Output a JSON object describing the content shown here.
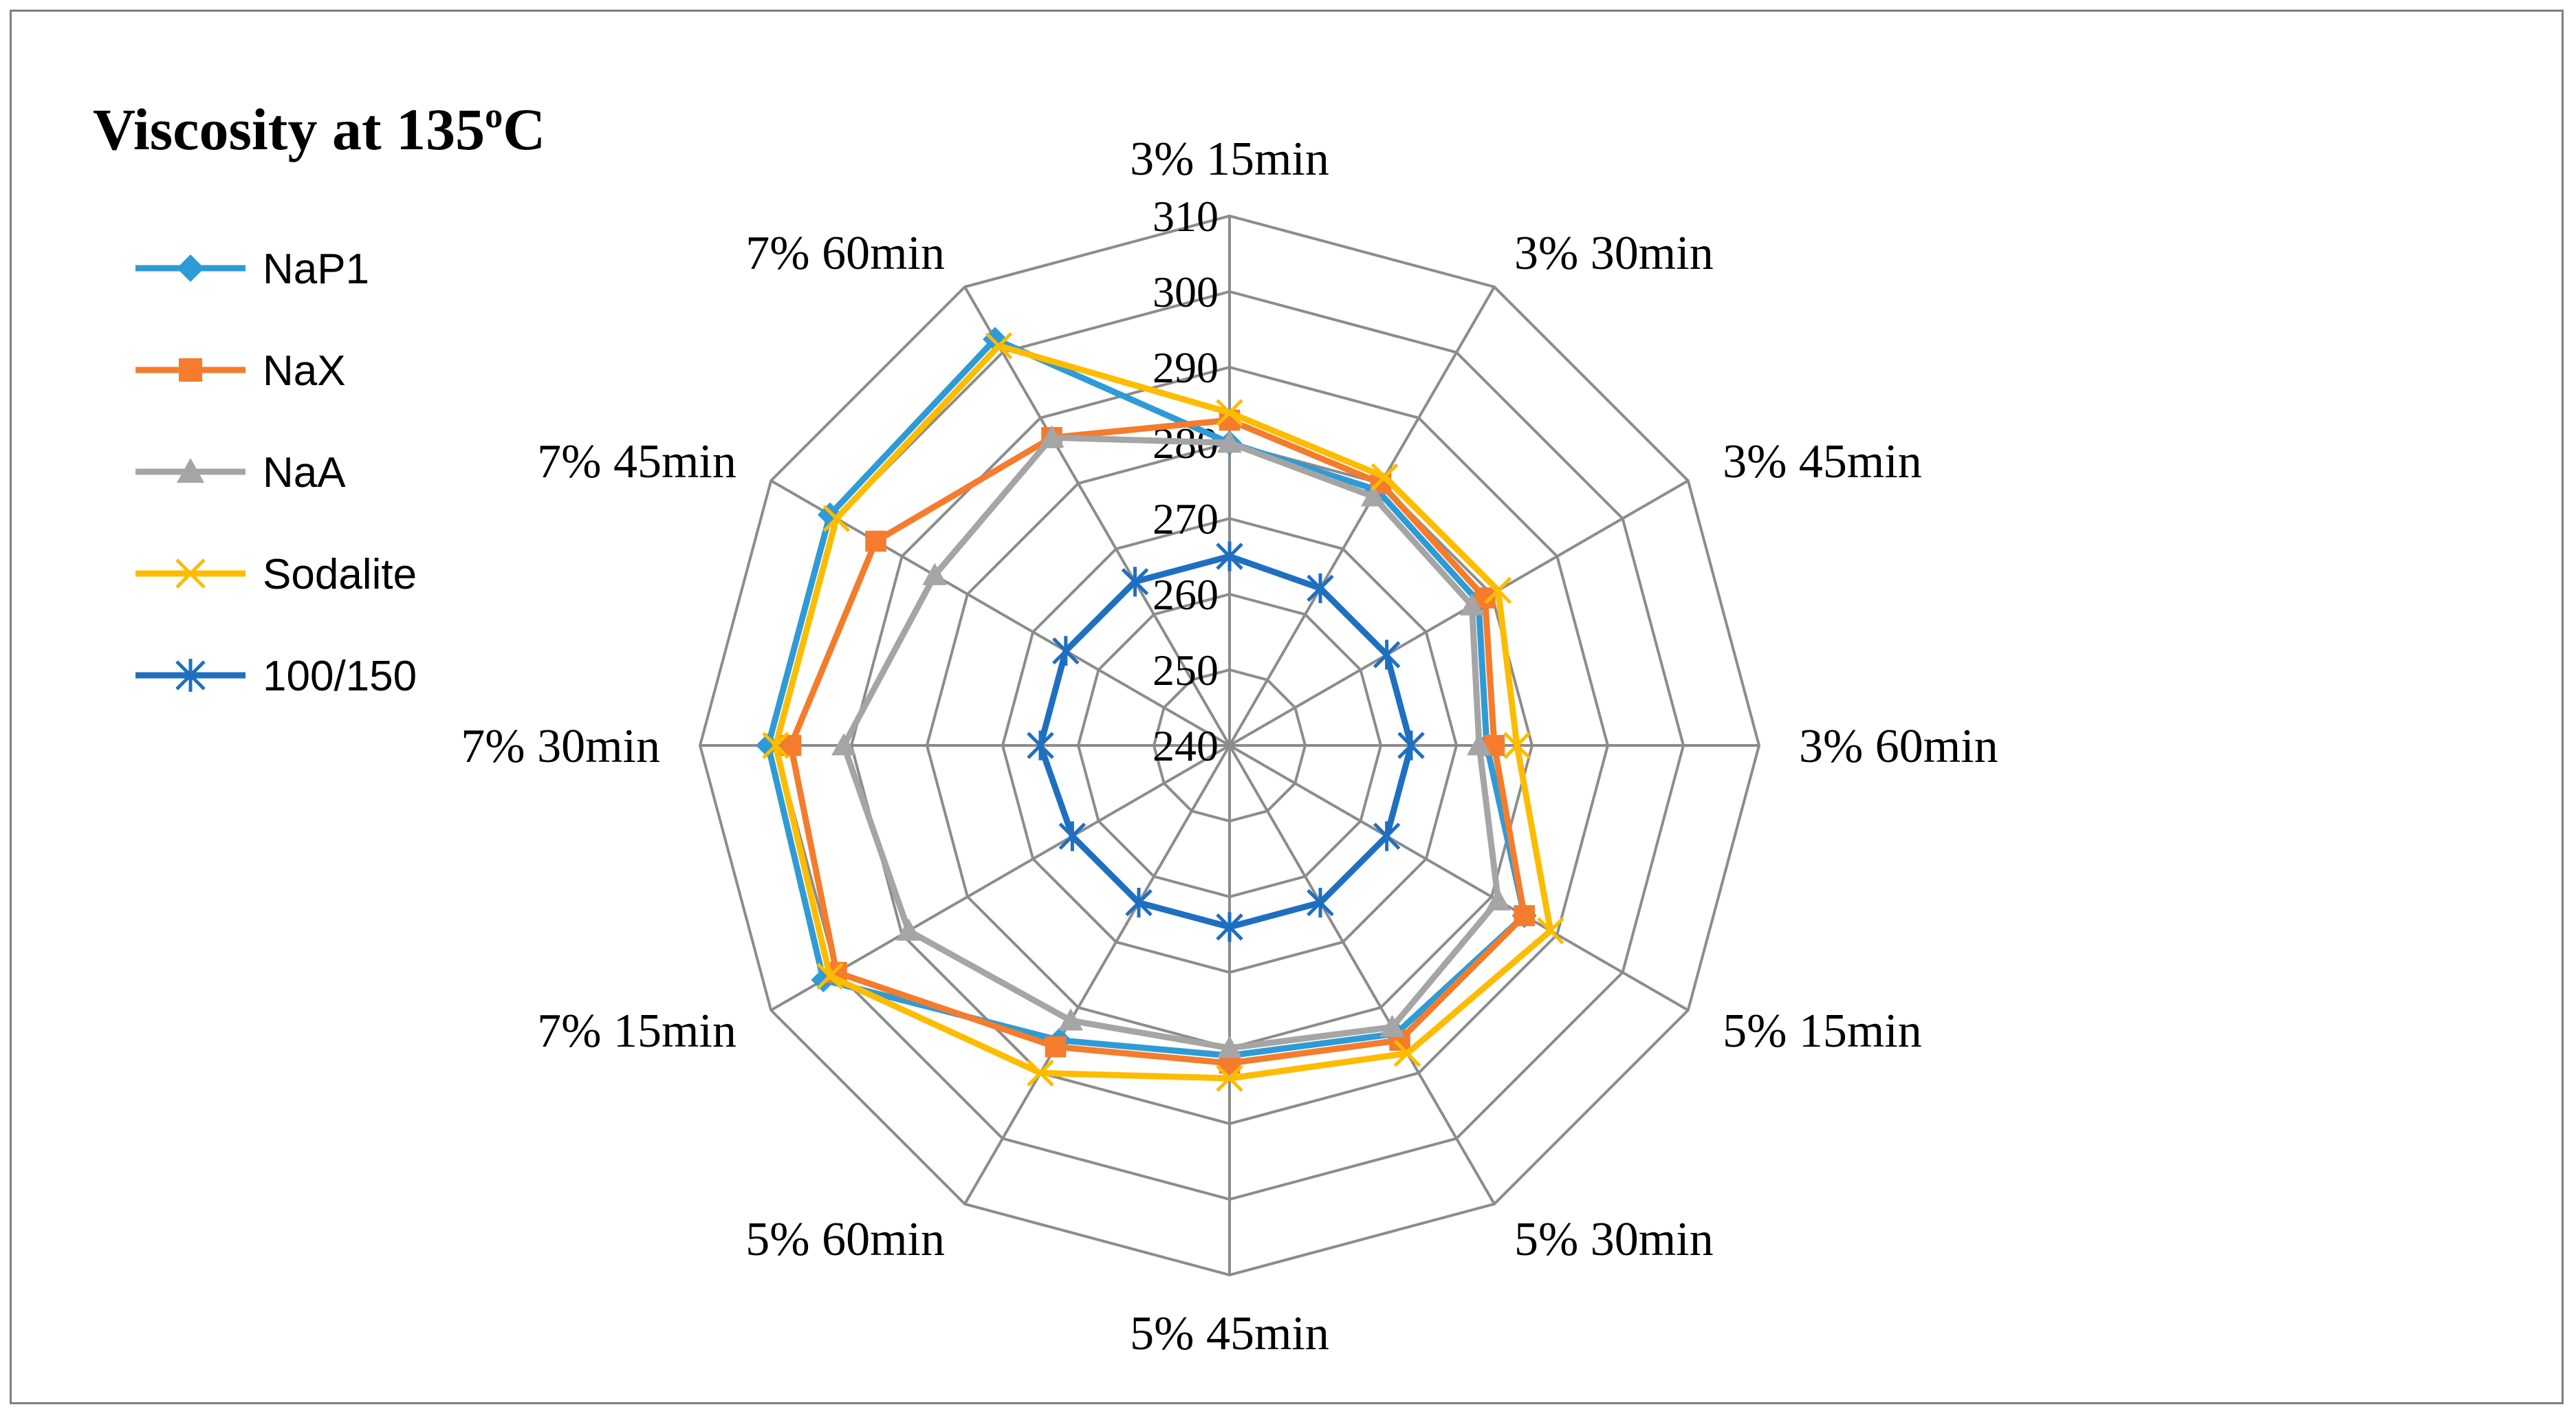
{
  "chart_data": {
    "type": "radar",
    "title": "Viscosity  at 135",
    "title_degree": "o",
    "title_unit": "C",
    "categories": [
      "3% 15min",
      "3% 30min",
      "3% 45min",
      "3% 60min",
      "5% 15min",
      "5% 30min",
      "5% 45min",
      "5% 60min",
      "7% 15min",
      "7% 30min",
      "7% 45min",
      "7% 60min"
    ],
    "ticks": [
      "240",
      "250",
      "260",
      "270",
      "280",
      "290",
      "300",
      "310"
    ],
    "rmin": 240,
    "rmax": 310,
    "rstep": 10,
    "legend_position": "left",
    "series": [
      {
        "name": "NaP1",
        "color": "#2e9bd6",
        "marker": "diamond",
        "values": [
          280,
          279,
          278,
          274,
          285,
          284,
          281,
          285,
          302,
          301,
          301,
          302
        ]
      },
      {
        "name": "NaX",
        "color": "#f47c2c",
        "marker": "square",
        "values": [
          283,
          280,
          279,
          275,
          285,
          285,
          282,
          286,
          300,
          298,
          294,
          287
        ]
      },
      {
        "name": "NaA",
        "color": "#a5a5a5",
        "marker": "triangle",
        "values": [
          280,
          278,
          277,
          273,
          281,
          283,
          280,
          282,
          289,
          291,
          285,
          287
        ]
      },
      {
        "name": "Sodalite",
        "color": "#fdbc00",
        "marker": "x",
        "values": [
          284,
          281,
          281,
          278,
          289,
          287,
          284,
          290,
          301,
          300,
          300,
          301
        ]
      },
      {
        "name": "100/150",
        "color": "#1f6fc1",
        "marker": "star",
        "values": [
          265,
          264,
          264,
          264,
          264,
          264,
          264,
          264,
          264,
          265,
          265,
          265
        ]
      }
    ]
  }
}
